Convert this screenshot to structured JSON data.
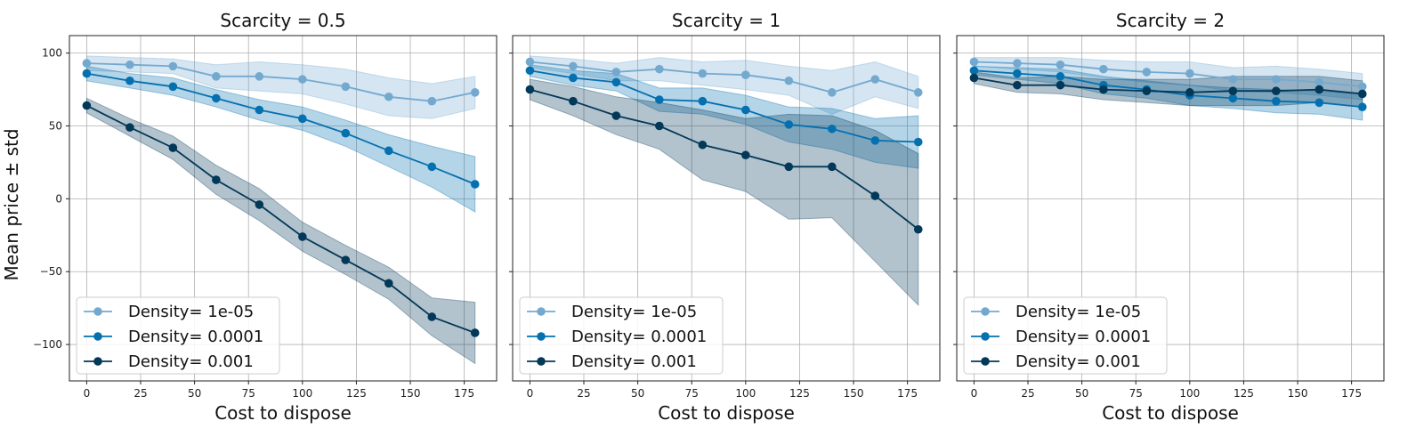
{
  "figure": {
    "ylabel": "Mean price ± std",
    "xlabel": "Cost to dispose"
  },
  "chart_data": [
    {
      "type": "line",
      "title": "Scarcity = 0.5",
      "xlabel": "Cost to dispose",
      "ylabel": "Mean price ± std",
      "x": [
        0,
        20,
        40,
        60,
        80,
        100,
        120,
        140,
        160,
        180
      ],
      "xlim": [
        -8,
        190
      ],
      "ylim": [
        -125,
        112
      ],
      "xticks": [
        0,
        25,
        50,
        75,
        100,
        125,
        150,
        175
      ],
      "yticks": [
        -100,
        -50,
        0,
        50,
        100
      ],
      "grid": true,
      "legend_position": "bottom-left",
      "series": [
        {
          "name": "Density= 1e-05",
          "color": "#74a9cf",
          "values": [
            93,
            92,
            91,
            84,
            84,
            82,
            77,
            70,
            67,
            73
          ],
          "std": [
            5,
            5,
            5,
            8,
            10,
            10,
            12,
            13,
            12,
            11
          ]
        },
        {
          "name": "Density= 0.0001",
          "color": "#0570b0",
          "values": [
            86,
            81,
            77,
            69,
            61,
            55,
            45,
            33,
            22,
            10
          ],
          "std": [
            5,
            5,
            6,
            6,
            7,
            8,
            9,
            11,
            14,
            19
          ]
        },
        {
          "name": "Density= 0.001",
          "color": "#023858",
          "values": [
            64,
            49,
            35,
            13,
            -4,
            -26,
            -42,
            -58,
            -81,
            -92
          ],
          "std": [
            5,
            6,
            8,
            10,
            11,
            10,
            10,
            11,
            13,
            21
          ]
        }
      ]
    },
    {
      "type": "line",
      "title": "Scarcity = 1",
      "xlabel": "Cost to dispose",
      "ylabel": "",
      "x": [
        0,
        20,
        40,
        60,
        80,
        100,
        120,
        140,
        160,
        180
      ],
      "xlim": [
        -8,
        190
      ],
      "ylim": [
        -125,
        112
      ],
      "xticks": [
        0,
        25,
        50,
        75,
        100,
        125,
        150,
        175
      ],
      "yticks": [
        -100,
        -50,
        0,
        50,
        100
      ],
      "grid": true,
      "legend_position": "bottom-left",
      "series": [
        {
          "name": "Density= 1e-05",
          "color": "#74a9cf",
          "values": [
            94,
            91,
            87,
            89,
            86,
            85,
            81,
            73,
            82,
            73
          ],
          "std": [
            4,
            5,
            6,
            8,
            8,
            10,
            10,
            15,
            12,
            11
          ]
        },
        {
          "name": "Density= 0.0001",
          "color": "#0570b0",
          "values": [
            88,
            83,
            80,
            68,
            67,
            61,
            51,
            48,
            40,
            39
          ],
          "std": [
            4,
            5,
            6,
            8,
            9,
            10,
            12,
            14,
            15,
            18
          ]
        },
        {
          "name": "Density= 0.001",
          "color": "#023858",
          "values": [
            75,
            67,
            57,
            50,
            37,
            30,
            22,
            22,
            2,
            -21
          ],
          "std": [
            7,
            10,
            13,
            16,
            24,
            25,
            36,
            35,
            45,
            52
          ]
        }
      ]
    },
    {
      "type": "line",
      "title": "Scarcity = 2",
      "xlabel": "Cost to dispose",
      "ylabel": "",
      "x": [
        0,
        20,
        40,
        60,
        80,
        100,
        120,
        140,
        160,
        180
      ],
      "xlim": [
        -8,
        190
      ],
      "ylim": [
        -125,
        112
      ],
      "xticks": [
        0,
        25,
        50,
        75,
        100,
        125,
        150,
        175
      ],
      "yticks": [
        -100,
        -50,
        0,
        50,
        100
      ],
      "grid": true,
      "legend_position": "bottom-left",
      "series": [
        {
          "name": "Density= 1e-05",
          "color": "#74a9cf",
          "values": [
            94,
            93,
            92,
            89,
            87,
            86,
            82,
            82,
            80,
            77
          ],
          "std": [
            3,
            4,
            5,
            6,
            7,
            8,
            8,
            9,
            9,
            9
          ]
        },
        {
          "name": "Density= 0.0001",
          "color": "#0570b0",
          "values": [
            88,
            86,
            84,
            78,
            75,
            71,
            69,
            67,
            66,
            63
          ],
          "std": [
            3,
            4,
            5,
            6,
            6,
            7,
            7,
            8,
            8,
            9
          ]
        },
        {
          "name": "Density= 0.001",
          "color": "#023858",
          "values": [
            83,
            78,
            78,
            75,
            74,
            73,
            74,
            74,
            75,
            72
          ],
          "std": [
            4,
            5,
            6,
            7,
            8,
            9,
            10,
            10,
            9,
            9
          ]
        }
      ]
    }
  ]
}
